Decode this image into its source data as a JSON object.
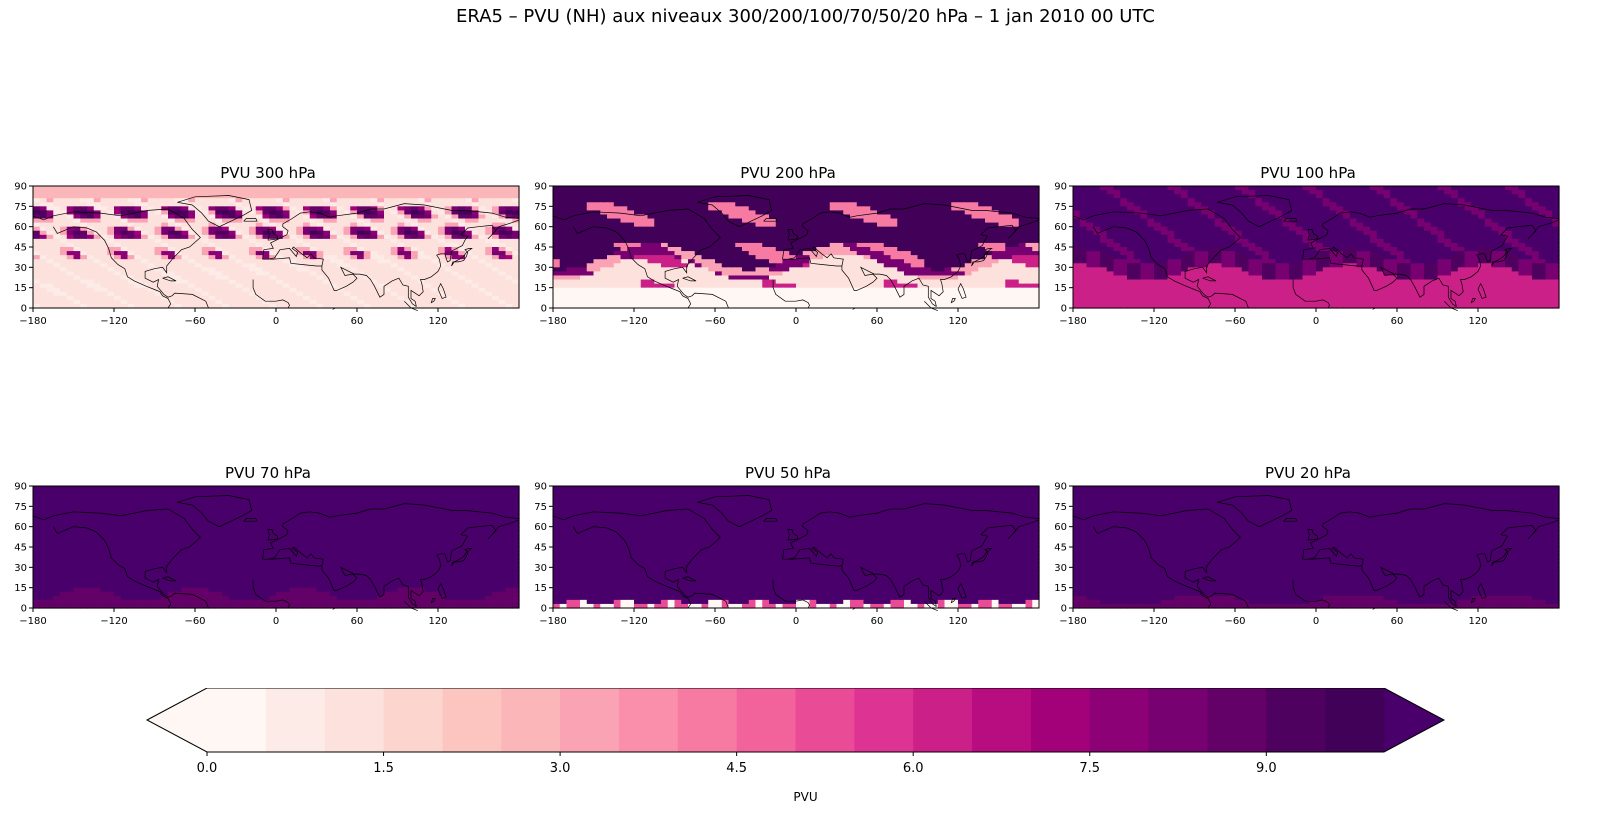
{
  "figure": {
    "title": "ERA5 – PVU (NH) aux niveaux 300/200/100/70/50/20 hPa – 1 jan 2010 00 UTC"
  },
  "chart_data": [
    {
      "type": "heatmap",
      "title": "PVU 300 hPa",
      "level_hPa": 300,
      "xlim": [
        -180,
        180
      ],
      "ylim": [
        0,
        90
      ],
      "xticks": [
        -180,
        -120,
        -60,
        0,
        60,
        120
      ],
      "yticks": [
        0,
        15,
        30,
        45,
        60,
        75,
        90
      ],
      "field_description": "mostly low PVU (0-1.5) with filaments of high PVU (6-10) in mid/high latitudes"
    },
    {
      "type": "heatmap",
      "title": "PVU 200 hPa",
      "level_hPa": 200,
      "xlim": [
        -180,
        180
      ],
      "ylim": [
        0,
        90
      ],
      "xticks": [
        -180,
        -120,
        -60,
        0,
        60,
        120
      ],
      "yticks": [
        0,
        15,
        30,
        45,
        60,
        75,
        90
      ],
      "field_description": "high PVU (7-10+) north of ~30N, low PVU (0-2) in tropics"
    },
    {
      "type": "heatmap",
      "title": "PVU 100 hPa",
      "level_hPa": 100,
      "xlim": [
        -180,
        180
      ],
      "ylim": [
        0,
        90
      ],
      "xticks": [
        -180,
        -120,
        -60,
        0,
        60,
        120
      ],
      "yticks": [
        0,
        15,
        30,
        45,
        60,
        75,
        90
      ],
      "field_description": ">10 PVU north of ~30N, ~6 PVU in tropics"
    },
    {
      "type": "heatmap",
      "title": "PVU 70 hPa",
      "level_hPa": 70,
      "xlim": [
        -180,
        180
      ],
      "ylim": [
        0,
        90
      ],
      "xticks": [
        -180,
        -120,
        -60,
        0,
        60,
        120
      ],
      "yticks": [
        0,
        15,
        30,
        45,
        60,
        75,
        90
      ],
      "field_description": ">10 PVU almost everywhere, ~8.5 PVU near equator"
    },
    {
      "type": "heatmap",
      "title": "PVU 50 hPa",
      "level_hPa": 50,
      "xlim": [
        -180,
        180
      ],
      "ylim": [
        0,
        90
      ],
      "xticks": [
        -180,
        -120,
        -60,
        0,
        60,
        120
      ],
      "yticks": [
        0,
        15,
        30,
        45,
        60,
        75,
        90
      ],
      "field_description": ">10 PVU everywhere, low values (0-3) in thin band near equator"
    },
    {
      "type": "heatmap",
      "title": "PVU 20 hPa",
      "level_hPa": 20,
      "xlim": [
        -180,
        180
      ],
      "ylim": [
        0,
        90
      ],
      "xticks": [
        -180,
        -120,
        -60,
        0,
        60,
        120
      ],
      "yticks": [
        0,
        15,
        30,
        45,
        60,
        75,
        90
      ],
      "field_description": ">10 PVU everywhere, ~8.5 PVU near equator"
    }
  ],
  "colorbar": {
    "label": "PVU",
    "levels": [
      0,
      0.5,
      1,
      1.5,
      2,
      2.5,
      3,
      3.5,
      4,
      4.5,
      5,
      5.5,
      6,
      6.5,
      7,
      7.5,
      8,
      8.5,
      9,
      9.5,
      10
    ],
    "tick_values": [
      0.0,
      1.5,
      3.0,
      4.5,
      6.0,
      7.5,
      9.0
    ],
    "tick_labels": [
      "0.0",
      "1.5",
      "3.0",
      "4.5",
      "6.0",
      "7.5",
      "9.0"
    ],
    "extend": "both",
    "colors": [
      "#fff7f3",
      "#fdebe8",
      "#fde1dd",
      "#fcd5cf",
      "#fcc5c0",
      "#fbb6ba",
      "#faa3b4",
      "#f98fab",
      "#f77aa2",
      "#f3639b",
      "#ea4b97",
      "#dd3493",
      "#cc2089",
      "#b80d81",
      "#a2017a",
      "#8d0176",
      "#780171",
      "#630168",
      "#4f0160",
      "#420159"
    ],
    "under_color": "#fff7f3",
    "over_color": "#49006a"
  }
}
